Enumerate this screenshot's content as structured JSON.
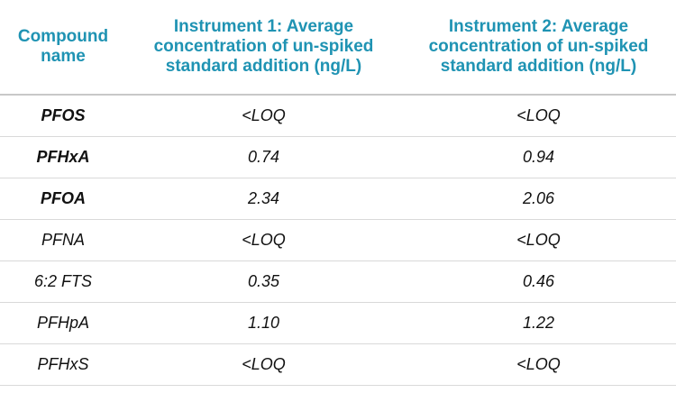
{
  "table": {
    "header": [
      "Compound name",
      "Instrument 1: Average concentration of un-spiked standard addition (ng/L)",
      "Instrument 2: Average concentration of un-spiked standard addition (ng/L)"
    ],
    "rows": [
      [
        "PFOS",
        "<LOQ",
        "<LOQ"
      ],
      [
        "PFHxA",
        "0.74",
        "0.94"
      ],
      [
        "PFOA",
        "2.34",
        "2.06"
      ],
      [
        "PFNA",
        "<LOQ",
        "<LOQ"
      ],
      [
        "6:2 FTS",
        "0.35",
        "0.46"
      ],
      [
        "PFHpA",
        "1.10",
        "1.22"
      ],
      [
        "PFHxS",
        "<LOQ",
        "<LOQ"
      ]
    ]
  }
}
